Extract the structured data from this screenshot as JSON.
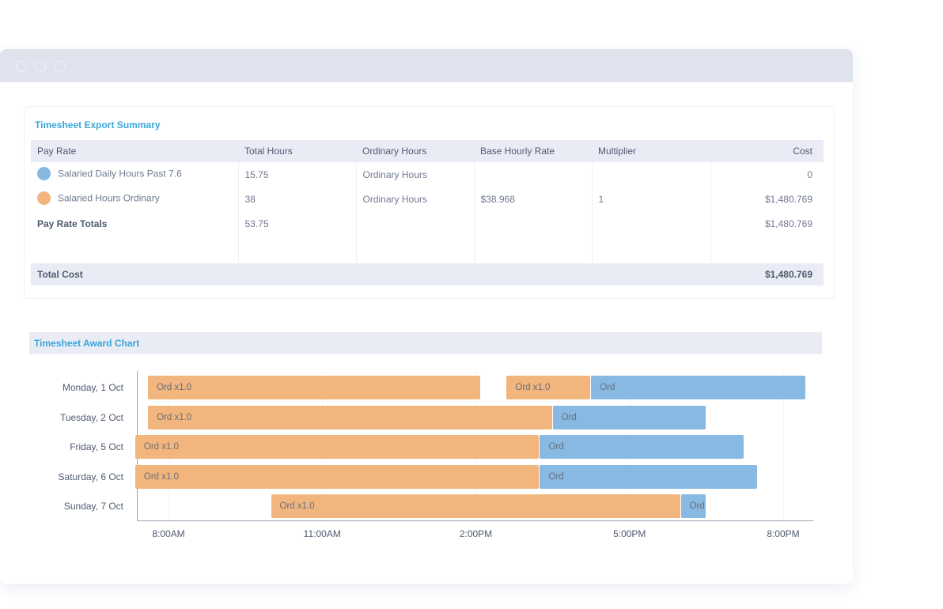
{
  "colors": {
    "ordinary_bar": "#f2b57e",
    "overtime_bar": "#87b9e2",
    "accent_title": "#3ba6d8",
    "dot_blue": "#86b9e2",
    "dot_orange": "#f2b57e"
  },
  "summary": {
    "title": "Timesheet Export Summary",
    "headers": [
      "Pay Rate",
      "Total Hours",
      "Ordinary Hours",
      "Base Hourly Rate",
      "Multiplier",
      "Cost"
    ],
    "rows": [
      {
        "dot": "blue-circle",
        "pay_rate": "Salaried Daily Hours Past 7.6",
        "total_hours": "15.75",
        "ordinary_hours": "Ordinary Hours",
        "base_rate": "",
        "multiplier": "",
        "cost": "0"
      },
      {
        "dot": "orange-circle",
        "pay_rate": "Salaried Hours Ordinary",
        "total_hours": "38",
        "ordinary_hours": "Ordinary Hours",
        "base_rate": "$38.968",
        "multiplier": "1",
        "cost": "$1,480.769"
      }
    ],
    "totals": {
      "label": "Pay Rate Totals",
      "total_hours": "53.75",
      "cost": "$1,480.769"
    },
    "total_cost": {
      "label": "Total Cost",
      "value": "$1,480.769"
    }
  },
  "award_chart": {
    "title": "Timesheet Award Chart"
  },
  "chart_data": {
    "type": "bar",
    "orientation": "horizontal-timeline",
    "title": "Timesheet Award Chart",
    "x_ticks": [
      "8:00AM",
      "11:00AM",
      "2:00PM",
      "5:00PM",
      "8:00PM"
    ],
    "x_tick_hours": [
      8,
      11,
      14,
      17,
      20
    ],
    "xlim_hours": [
      7.3,
      20.6
    ],
    "grid": "vertical dashed",
    "categories": [
      "Monday, 1 Oct",
      "Tuesday, 2 Oct",
      "Friday, 5 Oct",
      "Saturday, 6 Oct",
      "Sunday, 7 Oct"
    ],
    "segments": [
      {
        "row": 0,
        "label": "Ord x1.0",
        "kind": "ordinary",
        "start": 7.6,
        "end": 14.1
      },
      {
        "row": 0,
        "label": "Ord x1.0",
        "kind": "ordinary",
        "start": 14.6,
        "end": 16.25
      },
      {
        "row": 0,
        "label": "Ord",
        "kind": "overtime",
        "start": 16.25,
        "end": 20.45
      },
      {
        "row": 1,
        "label": "Ord x1.0",
        "kind": "ordinary",
        "start": 7.6,
        "end": 15.5
      },
      {
        "row": 1,
        "label": "Ord",
        "kind": "overtime",
        "start": 15.5,
        "end": 18.5
      },
      {
        "row": 2,
        "label": "Ord x1.0",
        "kind": "ordinary",
        "start": 7.35,
        "end": 15.25
      },
      {
        "row": 2,
        "label": "Ord",
        "kind": "overtime",
        "start": 15.25,
        "end": 19.25
      },
      {
        "row": 3,
        "label": "Ord x1.0",
        "kind": "ordinary",
        "start": 7.35,
        "end": 15.25
      },
      {
        "row": 3,
        "label": "Ord",
        "kind": "overtime",
        "start": 15.25,
        "end": 19.5
      },
      {
        "row": 4,
        "label": "Ord x1.0",
        "kind": "ordinary",
        "start": 10.0,
        "end": 18.0
      },
      {
        "row": 4,
        "label": "Ord",
        "kind": "overtime",
        "start": 18.0,
        "end": 18.5
      }
    ]
  }
}
